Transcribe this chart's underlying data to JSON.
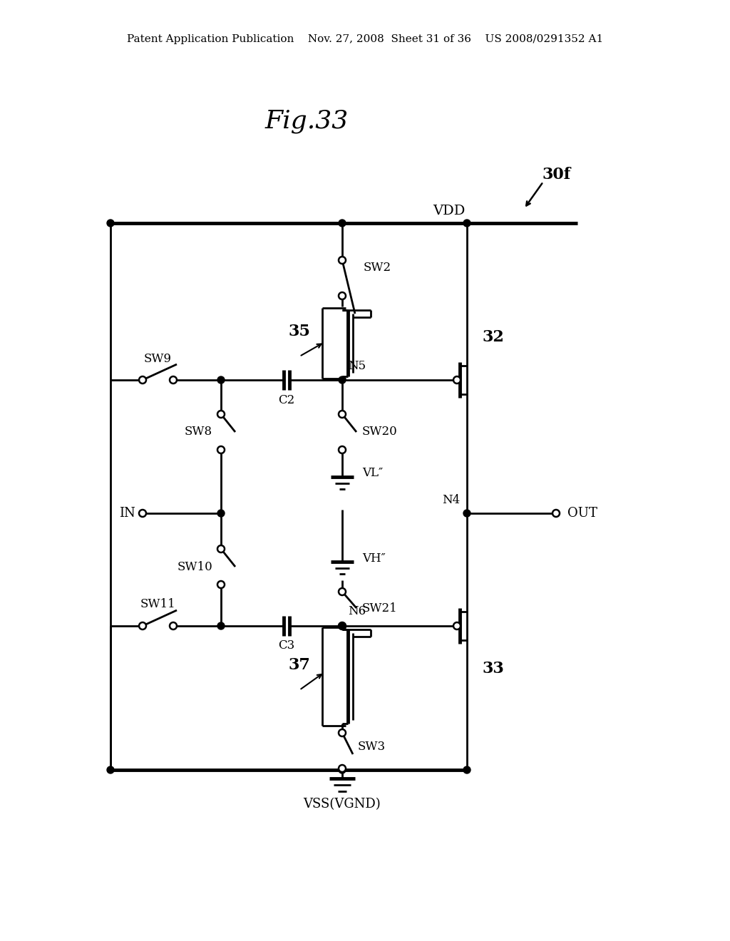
{
  "title": "Fig.33",
  "header": "Patent Application Publication    Nov. 27, 2008  Sheet 31 of 36    US 2008/0291352 A1",
  "label_30f": "30f",
  "label_VDD": "VDD",
  "label_VSS": "VSS(VGND)",
  "label_SW2": "SW2",
  "label_SW8": "SW8",
  "label_SW9": "SW9",
  "label_SW10": "SW10",
  "label_SW11": "SW11",
  "label_SW20": "SW20",
  "label_SW21": "SW21",
  "label_SW3": "SW3",
  "label_C2": "C2",
  "label_C3": "C3",
  "label_N4": "N4",
  "label_N5": "N5",
  "label_N6": "N6",
  "label_35": "35",
  "label_37": "37",
  "label_32": "32",
  "label_33": "33",
  "label_VL": "VL″",
  "label_VH": "VH″",
  "label_IN": "IN",
  "label_OUT": "OUT",
  "bg_color": "#ffffff",
  "line_color": "#000000"
}
